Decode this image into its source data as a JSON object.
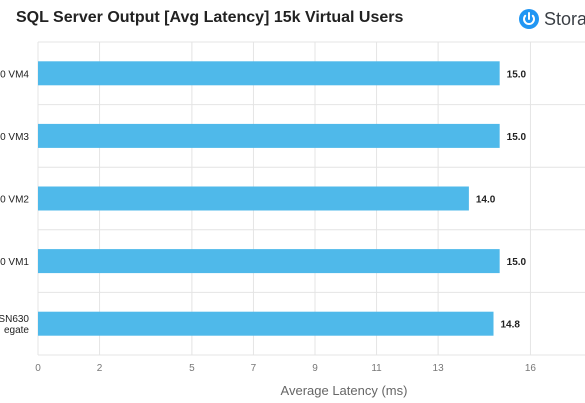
{
  "brand": {
    "logo_text": "Stora",
    "logo_icon": "storagereview-power-icon",
    "accent": "#2196f3"
  },
  "chart_data": {
    "type": "bar",
    "orientation": "horizontal",
    "title": "SQL Server Output [Avg Latency] 15k Virtual Users",
    "xlabel": "Average Latency (ms)",
    "ylabel": "",
    "xlim": [
      0,
      18
    ],
    "xticks": [
      0,
      2,
      5,
      7,
      9,
      11,
      13,
      16
    ],
    "grid": true,
    "bar_color": "#4fb9ea",
    "categories": [
      {
        "lines": [
          "0 VM4"
        ]
      },
      {
        "lines": [
          "0 VM3"
        ]
      },
      {
        "lines": [
          "0 VM2"
        ]
      },
      {
        "lines": [
          "0 VM1"
        ]
      },
      {
        "lines": [
          "SN630",
          "egate"
        ]
      }
    ],
    "values": [
      15.0,
      15.0,
      14.0,
      15.0,
      14.8
    ],
    "value_labels": [
      "15.0",
      "15.0",
      "14.0",
      "15.0",
      "14.8"
    ]
  }
}
